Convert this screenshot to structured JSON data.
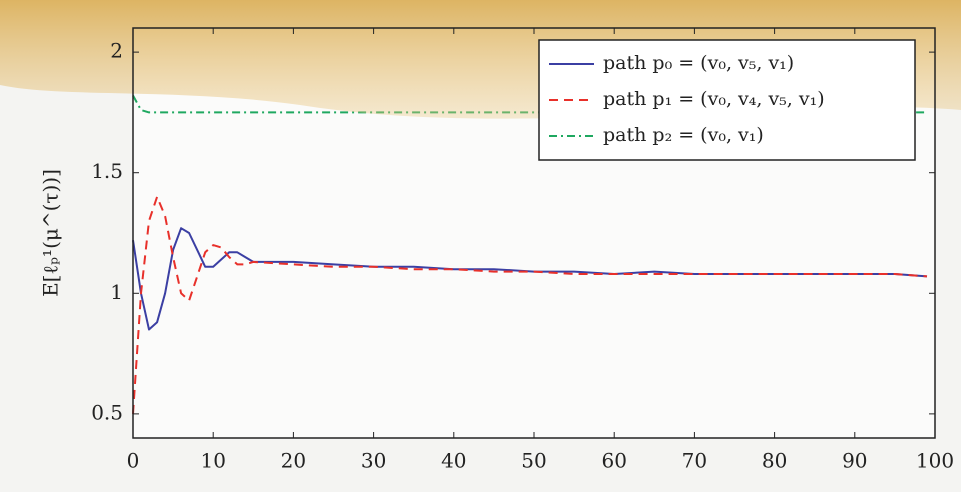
{
  "chart_data": {
    "type": "line",
    "y_label": "E[ℓₚ¹(μ^(τ))]",
    "x": [
      0,
      1,
      2,
      3,
      4,
      5,
      6,
      7,
      8,
      9,
      10,
      11,
      12,
      13,
      14,
      15,
      20,
      25,
      30,
      35,
      40,
      45,
      50,
      55,
      60,
      65,
      70,
      75,
      80,
      85,
      90,
      95,
      99
    ],
    "series": [
      {
        "name": "path p₀ = (v₀, v₅, v₁)",
        "color": "#3b3fa3",
        "dash": "solid",
        "values": [
          1.22,
          1.0,
          0.85,
          0.88,
          1.0,
          1.18,
          1.27,
          1.25,
          1.18,
          1.11,
          1.11,
          1.14,
          1.17,
          1.17,
          1.15,
          1.13,
          1.13,
          1.12,
          1.11,
          1.11,
          1.1,
          1.1,
          1.09,
          1.09,
          1.08,
          1.09,
          1.08,
          1.08,
          1.08,
          1.08,
          1.08,
          1.08,
          1.07
        ]
      },
      {
        "name": "path p₁ = (v₀, v₄, v₅, v₁)",
        "color": "#e8302a",
        "dash": "dashed",
        "values": [
          0.5,
          1.0,
          1.3,
          1.4,
          1.32,
          1.15,
          1.0,
          0.97,
          1.07,
          1.17,
          1.2,
          1.19,
          1.15,
          1.12,
          1.12,
          1.13,
          1.12,
          1.11,
          1.11,
          1.1,
          1.1,
          1.09,
          1.09,
          1.08,
          1.08,
          1.08,
          1.08,
          1.08,
          1.08,
          1.08,
          1.08,
          1.08,
          1.07
        ]
      },
      {
        "name": "path p₂ = (v₀, v₁)",
        "color": "#1fa860",
        "dash": "dashdot",
        "values": [
          1.82,
          1.76,
          1.75,
          1.75,
          1.75,
          1.75,
          1.75,
          1.75,
          1.75,
          1.75,
          1.75,
          1.75,
          1.75,
          1.75,
          1.75,
          1.75,
          1.75,
          1.75,
          1.75,
          1.75,
          1.75,
          1.75,
          1.75,
          1.75,
          1.75,
          1.75,
          1.75,
          1.75,
          1.75,
          1.75,
          1.75,
          1.75,
          1.75
        ]
      }
    ],
    "xlim": [
      0,
      100
    ],
    "ylim": [
      0.4,
      2.1
    ],
    "xticks": [
      0,
      10,
      20,
      30,
      40,
      50,
      60,
      70,
      80,
      90,
      100
    ],
    "yticks": [
      0.5,
      1,
      1.5,
      2
    ],
    "legend": "upper right"
  }
}
